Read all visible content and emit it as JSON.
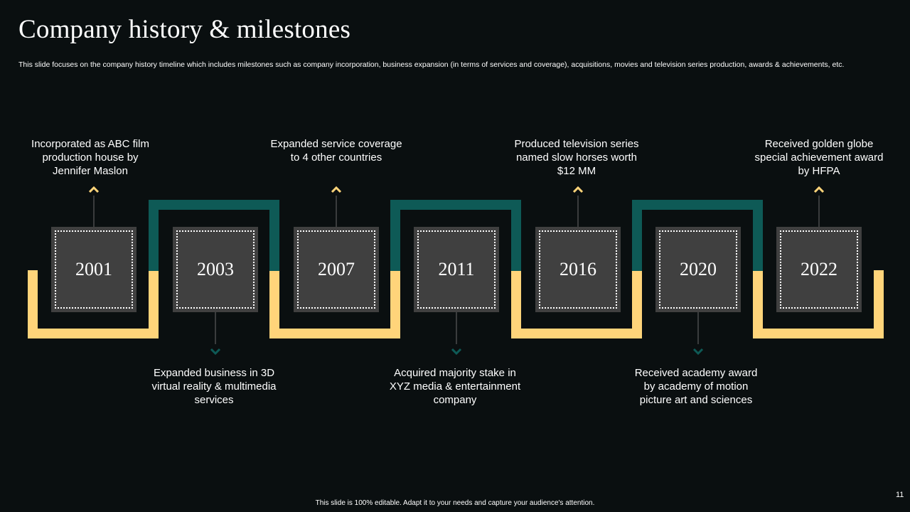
{
  "header": {
    "title": "Company history & milestones",
    "subtitle": "This slide focuses on the company history timeline which includes milestones such as company incorporation, business expansion (in terms of services and coverage), acquisitions, movies and television series production, awards & achievements, etc."
  },
  "colors": {
    "background": "#0a0f10",
    "yellow_track": "#ffd47a",
    "teal_track": "#0e5a56",
    "card": "#404040"
  },
  "milestones": [
    {
      "year": "2001",
      "text": "Incorporated  as ABC film production house by Jennifer Maslon",
      "position": "top"
    },
    {
      "year": "2003",
      "text": "Expanded business in 3D virtual  reality & multimedia services",
      "position": "bottom"
    },
    {
      "year": "2007",
      "text": "Expanded service coverage to 4 other countries",
      "position": "top"
    },
    {
      "year": "2011",
      "text": "Acquired majority stake in XYZ media & entertainment  company",
      "position": "bottom"
    },
    {
      "year": "2016",
      "text": "Produced television series named slow horses worth  $12 MM",
      "position": "top"
    },
    {
      "year": "2020",
      "text": "Received academy award by academy of motion picture art and sciences",
      "position": "bottom"
    },
    {
      "year": "2022",
      "text": "Received golden globe special achievement award by HFPA",
      "position": "top"
    }
  ],
  "footer": {
    "note": "This slide is 100% editable.  Adapt it to your needs and capture your audience's attention.",
    "page_number": "11"
  }
}
